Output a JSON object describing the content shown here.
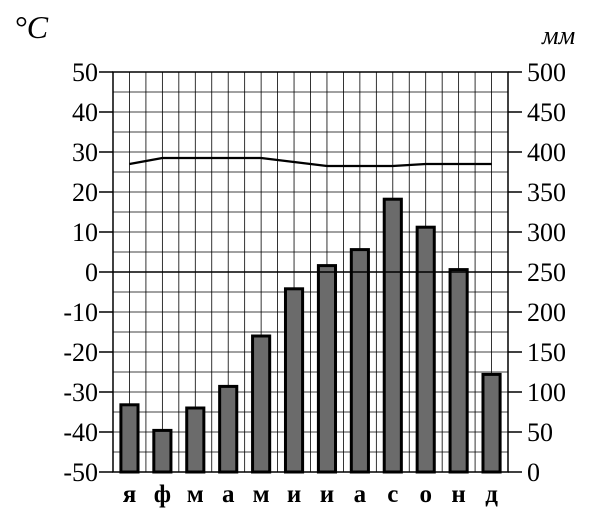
{
  "chart_data": {
    "type": "bar",
    "title": "",
    "left_axis": {
      "unit_label": "°C",
      "ylim": [
        -50,
        50
      ],
      "ticks": [
        "50",
        "40",
        "30",
        "20",
        "10",
        "0",
        "-10",
        "-20",
        "-30",
        "-40",
        "-50"
      ]
    },
    "right_axis": {
      "unit_label": "мм",
      "ylim": [
        0,
        500
      ],
      "ticks": [
        "500",
        "450",
        "400",
        "350",
        "300",
        "250",
        "200",
        "150",
        "100",
        "50",
        "0"
      ]
    },
    "categories": [
      "я",
      "ф",
      "м",
      "а",
      "м",
      "и",
      "и",
      "а",
      "с",
      "о",
      "н",
      "д"
    ],
    "series": [
      {
        "type": "bar",
        "axis": "right",
        "values": [
          84,
          52,
          80,
          107,
          170,
          229,
          258,
          278,
          341,
          306,
          253,
          122
        ],
        "color": "#6b6b6b"
      },
      {
        "type": "line",
        "axis": "left",
        "values": [
          27,
          28.5,
          28.5,
          28.5,
          28.5,
          27.5,
          26.5,
          26.5,
          26.5,
          27,
          27,
          27
        ],
        "color": "#000000"
      }
    ],
    "grid": true
  }
}
